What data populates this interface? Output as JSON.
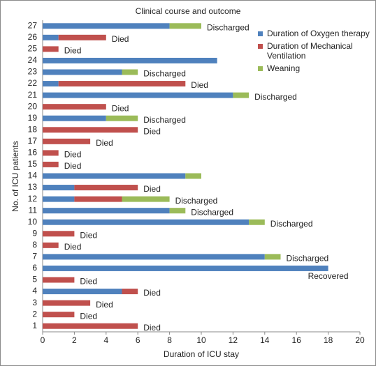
{
  "chart_data": {
    "type": "stacked-barh",
    "title": "Clinical course and outcome",
    "xlabel": "Duration of ICU stay",
    "ylabel": "No. of ICU patients",
    "categories": [
      "1",
      "2",
      "3",
      "4",
      "5",
      "6",
      "7",
      "8",
      "9",
      "10",
      "11",
      "12",
      "13",
      "14",
      "15",
      "16",
      "17",
      "18",
      "19",
      "20",
      "21",
      "22",
      "23",
      "24",
      "25",
      "26",
      "27"
    ],
    "series": [
      {
        "name": "Duration of Oxygen therapy",
        "color": "#4f81bd",
        "values": [
          0,
          0,
          0,
          5,
          0,
          18,
          14,
          0,
          0,
          13,
          8,
          2,
          2,
          9,
          0,
          0,
          0,
          0,
          4,
          0,
          12,
          1,
          5,
          11,
          0,
          1,
          8
        ]
      },
      {
        "name": "Duration of Mechanical Ventilation",
        "color": "#c0504d",
        "values": [
          6,
          2,
          3,
          1,
          2,
          0,
          0,
          1,
          2,
          0,
          0,
          3,
          4,
          0,
          1,
          1,
          3,
          6,
          0,
          4,
          0,
          8,
          0,
          0,
          1,
          3,
          0
        ]
      },
      {
        "name": "Weaning",
        "color": "#9bbb59",
        "values": [
          0,
          0,
          0,
          0,
          0,
          0,
          1,
          0,
          0,
          1,
          1,
          3,
          0,
          1,
          0,
          0,
          0,
          0,
          2,
          0,
          1,
          0,
          1,
          0,
          0,
          0,
          2
        ]
      }
    ],
    "outcomes": [
      "Died",
      "Died",
      "Died",
      "Died",
      "Died",
      "Recovered",
      "Discharged",
      "Died",
      "Died",
      "Discharged",
      "Discharged",
      "Discharged",
      "Died",
      null,
      "Died",
      "Died",
      "Died",
      "Died",
      "Discharged",
      "Died",
      "Discharged",
      "Died",
      "Discharged",
      null,
      "Died",
      "Died",
      "Discharged"
    ],
    "xlim": [
      0,
      20
    ],
    "xticks": [
      0,
      2,
      4,
      6,
      8,
      10,
      12,
      14,
      16,
      18,
      20
    ],
    "grid": false,
    "legend": "top-right"
  }
}
